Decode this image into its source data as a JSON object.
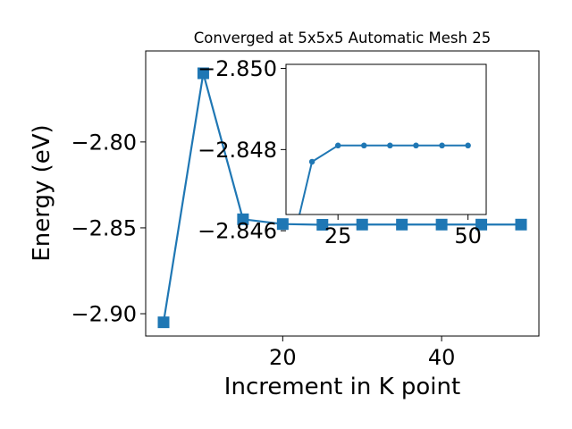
{
  "chart_data": [
    {
      "type": "line",
      "title": "Converged at 5x5x5 Automatic Mesh 25",
      "xlabel": "Increment in K point",
      "ylabel": "Energy (eV)",
      "xlim": [
        2.75,
        52.25
      ],
      "ylim": [
        -2.913,
        -2.747
      ],
      "x_ticks": [
        20,
        40
      ],
      "x_tick_labels": [
        "20",
        "40"
      ],
      "y_ticks": [
        -2.8,
        -2.85,
        -2.9
      ],
      "y_tick_labels": [
        "−2.80",
        "−2.85",
        "−2.90"
      ],
      "grid": false,
      "series": [
        {
          "color": "#1f77b4",
          "marker": "square",
          "x": [
            5,
            10,
            15,
            20,
            25,
            30,
            35,
            40,
            45,
            50
          ],
          "values": [
            -2.905,
            -2.76,
            -2.845,
            -2.8478,
            -2.8482,
            -2.8481,
            -2.8481,
            -2.8481,
            -2.8481,
            -2.8481
          ]
        }
      ]
    },
    {
      "type": "line",
      "title": "",
      "xlabel": "",
      "ylabel": "",
      "xlim": [
        15,
        53.5
      ],
      "ylim": [
        -2.8464,
        -2.8501
      ],
      "x_ticks": [
        25,
        50
      ],
      "x_tick_labels": [
        "25",
        "50"
      ],
      "y_ticks": [
        -2.85,
        -2.848,
        -2.846
      ],
      "y_tick_labels": [
        "−2.850",
        "−2.848",
        "−2.846"
      ],
      "grid": false,
      "series": [
        {
          "color": "#1f77b4",
          "marker": "circle",
          "x": [
            15,
            20,
            25,
            30,
            35,
            40,
            45,
            50
          ],
          "values": [
            -2.845,
            -2.8477,
            -2.8481,
            -2.8481,
            -2.8481,
            -2.8481,
            -2.8481,
            -2.8481
          ]
        }
      ]
    }
  ]
}
